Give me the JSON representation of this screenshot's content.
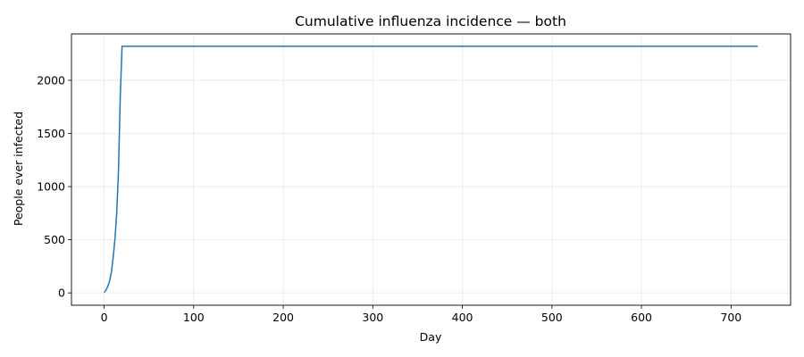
{
  "chart_data": {
    "type": "line",
    "title": "Cumulative influenza incidence — both",
    "xlabel": "Day",
    "ylabel": "People ever infected",
    "xlim": [
      -36.5,
      766.5
    ],
    "ylim": [
      -116,
      2436
    ],
    "xticks": [
      0,
      100,
      200,
      300,
      400,
      500,
      600,
      700
    ],
    "yticks": [
      0,
      500,
      1000,
      1500,
      2000
    ],
    "grid": true,
    "legend": "none",
    "series": [
      {
        "color": "#1f77b4",
        "x": [
          0,
          2,
          4,
          6,
          8,
          10,
          12,
          14,
          16,
          18,
          20,
          730
        ],
        "y": [
          5,
          25,
          60,
          110,
          190,
          330,
          500,
          750,
          1150,
          1850,
          2320,
          2320
        ]
      }
    ]
  }
}
